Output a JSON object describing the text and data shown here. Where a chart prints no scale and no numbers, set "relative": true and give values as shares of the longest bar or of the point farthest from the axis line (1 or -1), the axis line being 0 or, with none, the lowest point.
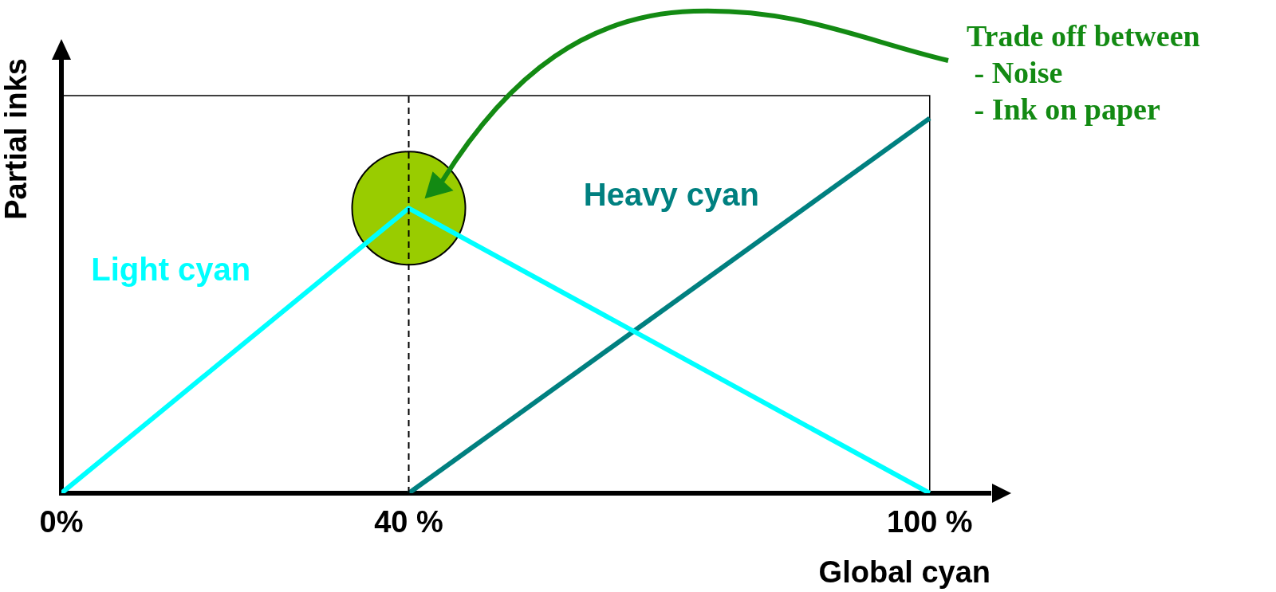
{
  "chart_data": {
    "type": "line",
    "relative": true,
    "xlabel": "Global cyan",
    "ylabel": "Partial inks",
    "xlim": [
      0,
      107
    ],
    "xticks": [
      {
        "value": 0,
        "label": "0%"
      },
      {
        "value": 40,
        "label": "40 %"
      },
      {
        "value": 100,
        "label": "100 %"
      }
    ],
    "series": [
      {
        "name": "Light cyan",
        "color": "#00ffff",
        "x": [
          0,
          40,
          100
        ],
        "values": [
          0,
          0.76,
          0
        ]
      },
      {
        "name": "Heavy cyan",
        "color": "#008080",
        "x": [
          40,
          100
        ],
        "values": [
          0,
          1
        ]
      },
      {
        "type": "scatter",
        "color": "#99cc00",
        "x": [
          40
        ],
        "values": [
          0.76
        ],
        "marker": "circle"
      }
    ],
    "ref_lines": [
      {
        "axis": "x",
        "value": 40,
        "line_style": "dashed",
        "color": "#000000"
      }
    ],
    "annotations": [
      "Trade off between\n - Noise\n - Ink on paper"
    ],
    "legend": false,
    "grid": false,
    "marker": "none",
    "line_style": "solid"
  }
}
